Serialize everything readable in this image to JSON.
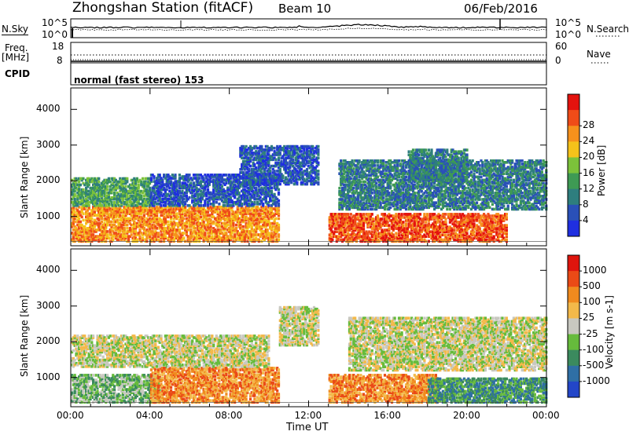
{
  "header": {
    "station": "Zhongshan Station (fitACF)",
    "beam": "Beam 10",
    "date": "06/Feb/2016"
  },
  "panels": {
    "nsky_label": "N.Sky",
    "nsearch_label": "N.Search",
    "nsky_ticks": [
      "10^5",
      "10^0"
    ],
    "nsearch_ticks": [
      "10^5",
      "10^0"
    ],
    "freq_label": "Freq.",
    "freq_unit": "[MHz]",
    "freq_ticks": [
      "18",
      "8"
    ],
    "nave_label": "Nave",
    "nave_ticks": [
      "60",
      "0"
    ],
    "cpid_label": "CPID",
    "cpid_value": "normal (fast stereo) 153"
  },
  "chart_data": [
    {
      "type": "heatmap",
      "title": "",
      "xlabel": "Time UT",
      "ylabel": "Slant Range [km]",
      "x_ticks": [
        "00:00",
        "04:00",
        "08:00",
        "12:00",
        "16:00",
        "20:00",
        "00:00"
      ],
      "xlim_hours": [
        0,
        24
      ],
      "y_ticks": [
        1000,
        2000,
        3000,
        4000
      ],
      "ylim": [
        180,
        4600
      ],
      "colorbar": {
        "label": "Power [dB]",
        "ticks": [
          "4",
          "8",
          "12",
          "16",
          "20",
          "24",
          "28"
        ],
        "colors": [
          "#1f2fe0",
          "#2a50b8",
          "#2e7e7e",
          "#3e9a54",
          "#7cc23a",
          "#f5c21a",
          "#f6911c",
          "#ef4c18",
          "#e4130e"
        ]
      },
      "echo_regions": [
        {
          "t0": 0.0,
          "t1": 10.5,
          "r0": 300,
          "r1": 1300,
          "level": 6
        },
        {
          "t0": 0.0,
          "t1": 4.0,
          "r0": 1300,
          "r1": 2100,
          "level": 3
        },
        {
          "t0": 4.0,
          "t1": 10.5,
          "r0": 1300,
          "r1": 2200,
          "level": 1
        },
        {
          "t0": 8.5,
          "t1": 12.5,
          "r0": 1900,
          "r1": 3000,
          "level": 1
        },
        {
          "t0": 13.0,
          "t1": 22.0,
          "r0": 300,
          "r1": 1100,
          "level": 7
        },
        {
          "t0": 13.5,
          "t1": 24.0,
          "r0": 1200,
          "r1": 2600,
          "level": 2
        },
        {
          "t0": 17.0,
          "t1": 20.0,
          "r0": 2000,
          "r1": 2900,
          "level": 2
        }
      ]
    },
    {
      "type": "heatmap",
      "title": "",
      "xlabel": "Time UT",
      "ylabel": "Slant Range [km]",
      "x_ticks": [
        "00:00",
        "04:00",
        "08:00",
        "12:00",
        "16:00",
        "20:00",
        "00:00"
      ],
      "xlim_hours": [
        0,
        24
      ],
      "y_ticks": [
        1000,
        2000,
        3000,
        4000
      ],
      "ylim": [
        180,
        4600
      ],
      "colorbar": {
        "label": "Velocity [m s-1]",
        "ticks": [
          "1000",
          "500",
          "100",
          "25",
          "-25",
          "-100",
          "-500",
          "-1000"
        ],
        "colors": [
          "#2346c8",
          "#2f6fa5",
          "#3b8a5e",
          "#66bb3c",
          "#c8c8c0",
          "#f3b94a",
          "#f08a1e",
          "#ea4a16",
          "#df150d"
        ]
      },
      "echo_regions": [
        {
          "t0": 0.0,
          "t1": 4.5,
          "r0": 300,
          "r1": 1100,
          "level": 3
        },
        {
          "t0": 4.0,
          "t1": 10.5,
          "r0": 300,
          "r1": 1300,
          "level": 6
        },
        {
          "t0": 0.0,
          "t1": 10.0,
          "r0": 1300,
          "r1": 2200,
          "level": 4
        },
        {
          "t0": 10.5,
          "t1": 12.5,
          "r0": 1900,
          "r1": 3000,
          "level": 4
        },
        {
          "t0": 13.0,
          "t1": 18.5,
          "r0": 300,
          "r1": 1100,
          "level": 6
        },
        {
          "t0": 18.0,
          "t1": 24.0,
          "r0": 300,
          "r1": 1000,
          "level": 2
        },
        {
          "t0": 14.0,
          "t1": 24.0,
          "r0": 1200,
          "r1": 2700,
          "level": 4
        }
      ]
    }
  ]
}
